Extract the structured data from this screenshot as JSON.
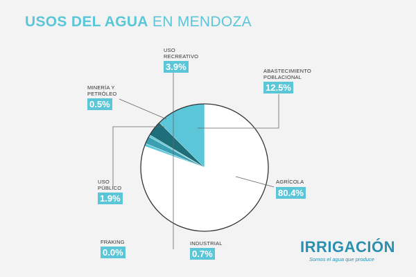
{
  "title": {
    "bold": "USOS DEL AGUA",
    "light": "EN MENDOZA"
  },
  "brand": {
    "name": "IRRIGACIÓN",
    "tagline": "Somos el agua que produce"
  },
  "colors": {
    "accent": "#5bc6d8",
    "dark": "#1f6f7a",
    "mid": "#3a9fb0",
    "brand": "#2a8fb0"
  },
  "chart_data": {
    "type": "pie",
    "title": "USOS DEL AGUA EN MENDOZA",
    "slices": [
      {
        "label": "AGRÍCOLA",
        "value": 80.4,
        "display": "80.4%"
      },
      {
        "label": "ABASTECIMIENTO POBLACIONAL",
        "value": 12.5,
        "display": "12.5%"
      },
      {
        "label": "USO RECREATIVO",
        "value": 3.9,
        "display": "3.9%"
      },
      {
        "label": "MINERÍA Y PETRÓLEO",
        "value": 0.5,
        "display": "0.5%"
      },
      {
        "label": "USO PÚBLICO",
        "value": 1.9,
        "display": "1.9%"
      },
      {
        "label": "INDUSTRIAL",
        "value": 0.7,
        "display": "0.7%"
      },
      {
        "label": "FRAKING",
        "value": 0.0,
        "display": "0.0%"
      }
    ],
    "labels": {
      "recreativo": [
        "USO",
        "RECREATIVO"
      ],
      "abastecimiento": [
        "ABASTECIMIENTO",
        "POBLACIONAL"
      ],
      "mineria": [
        "MINERÍA Y",
        "PETRÓLEO"
      ],
      "publico": [
        "USO",
        "PÚBLICO"
      ],
      "agricola": [
        "AGRÍCOLA"
      ],
      "industrial": [
        "INDUSTRIAL"
      ],
      "fraking": [
        "FRAKING"
      ]
    }
  }
}
